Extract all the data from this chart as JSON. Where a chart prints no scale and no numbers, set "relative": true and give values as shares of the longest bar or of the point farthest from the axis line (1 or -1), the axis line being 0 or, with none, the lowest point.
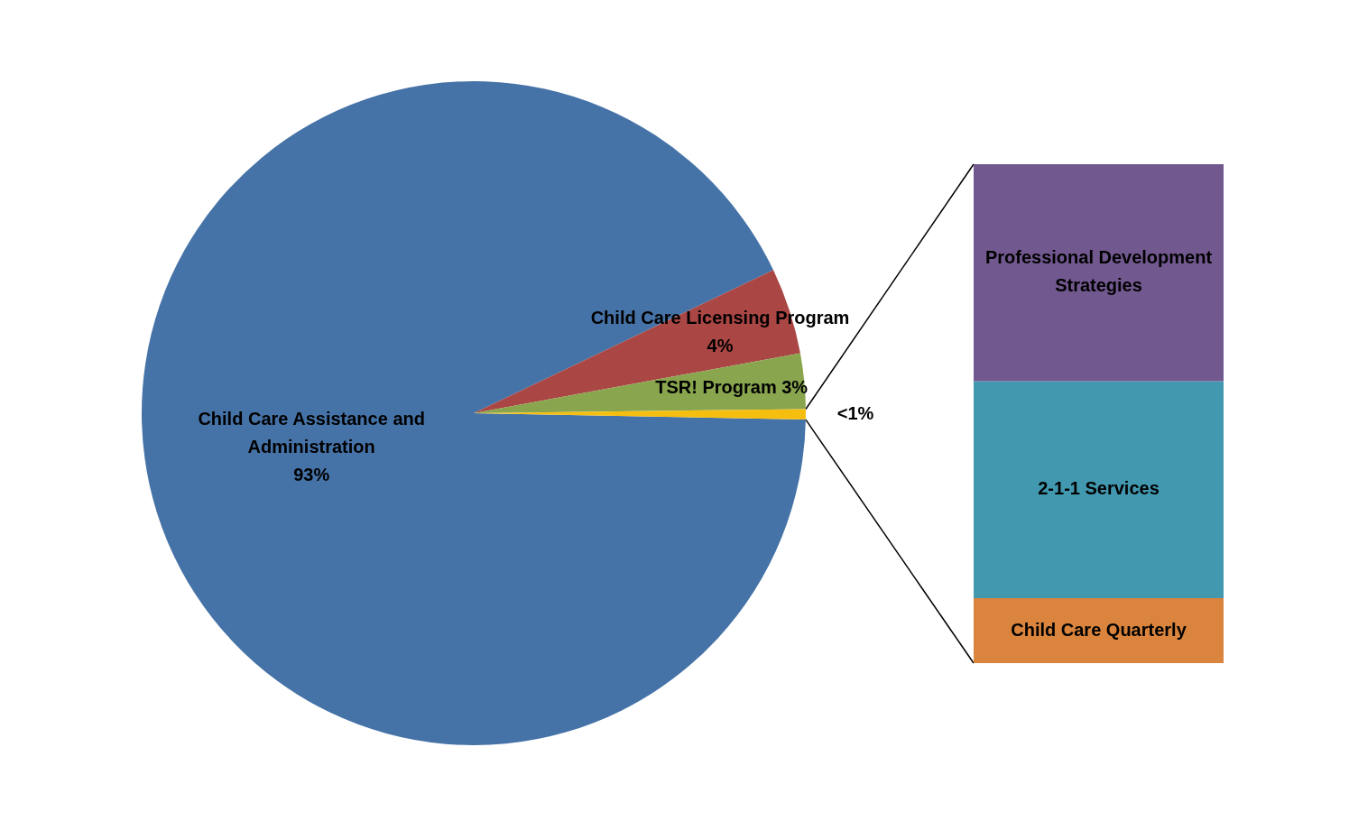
{
  "chart_data": [
    {
      "type": "pie",
      "categories": [
        "Child Care Assistance and Administration",
        "Child Care Licensing Program",
        "TSR! Program",
        null
      ],
      "values": [
        92.6,
        4.2,
        2.7,
        0.5
      ],
      "colors": [
        "#4673a7",
        "#aa4644",
        "#89a54e",
        "#f6be0f"
      ],
      "value_labels": [
        "93%",
        "4%",
        "3%",
        "<1%"
      ],
      "legend": false
    },
    {
      "type": "bar",
      "stacked": true,
      "relative": true,
      "categories": [
        null
      ],
      "legend": false,
      "series": [
        {
          "name": "Child Care Quarterly",
          "color": "#db843d",
          "values": [
            0.13
          ]
        },
        {
          "name": "2-1-1 Services",
          "color": "#4198af",
          "values": [
            0.435
          ]
        },
        {
          "name": "Professional Development Strategies",
          "color": "#71588f",
          "values": [
            0.435
          ]
        }
      ]
    }
  ]
}
